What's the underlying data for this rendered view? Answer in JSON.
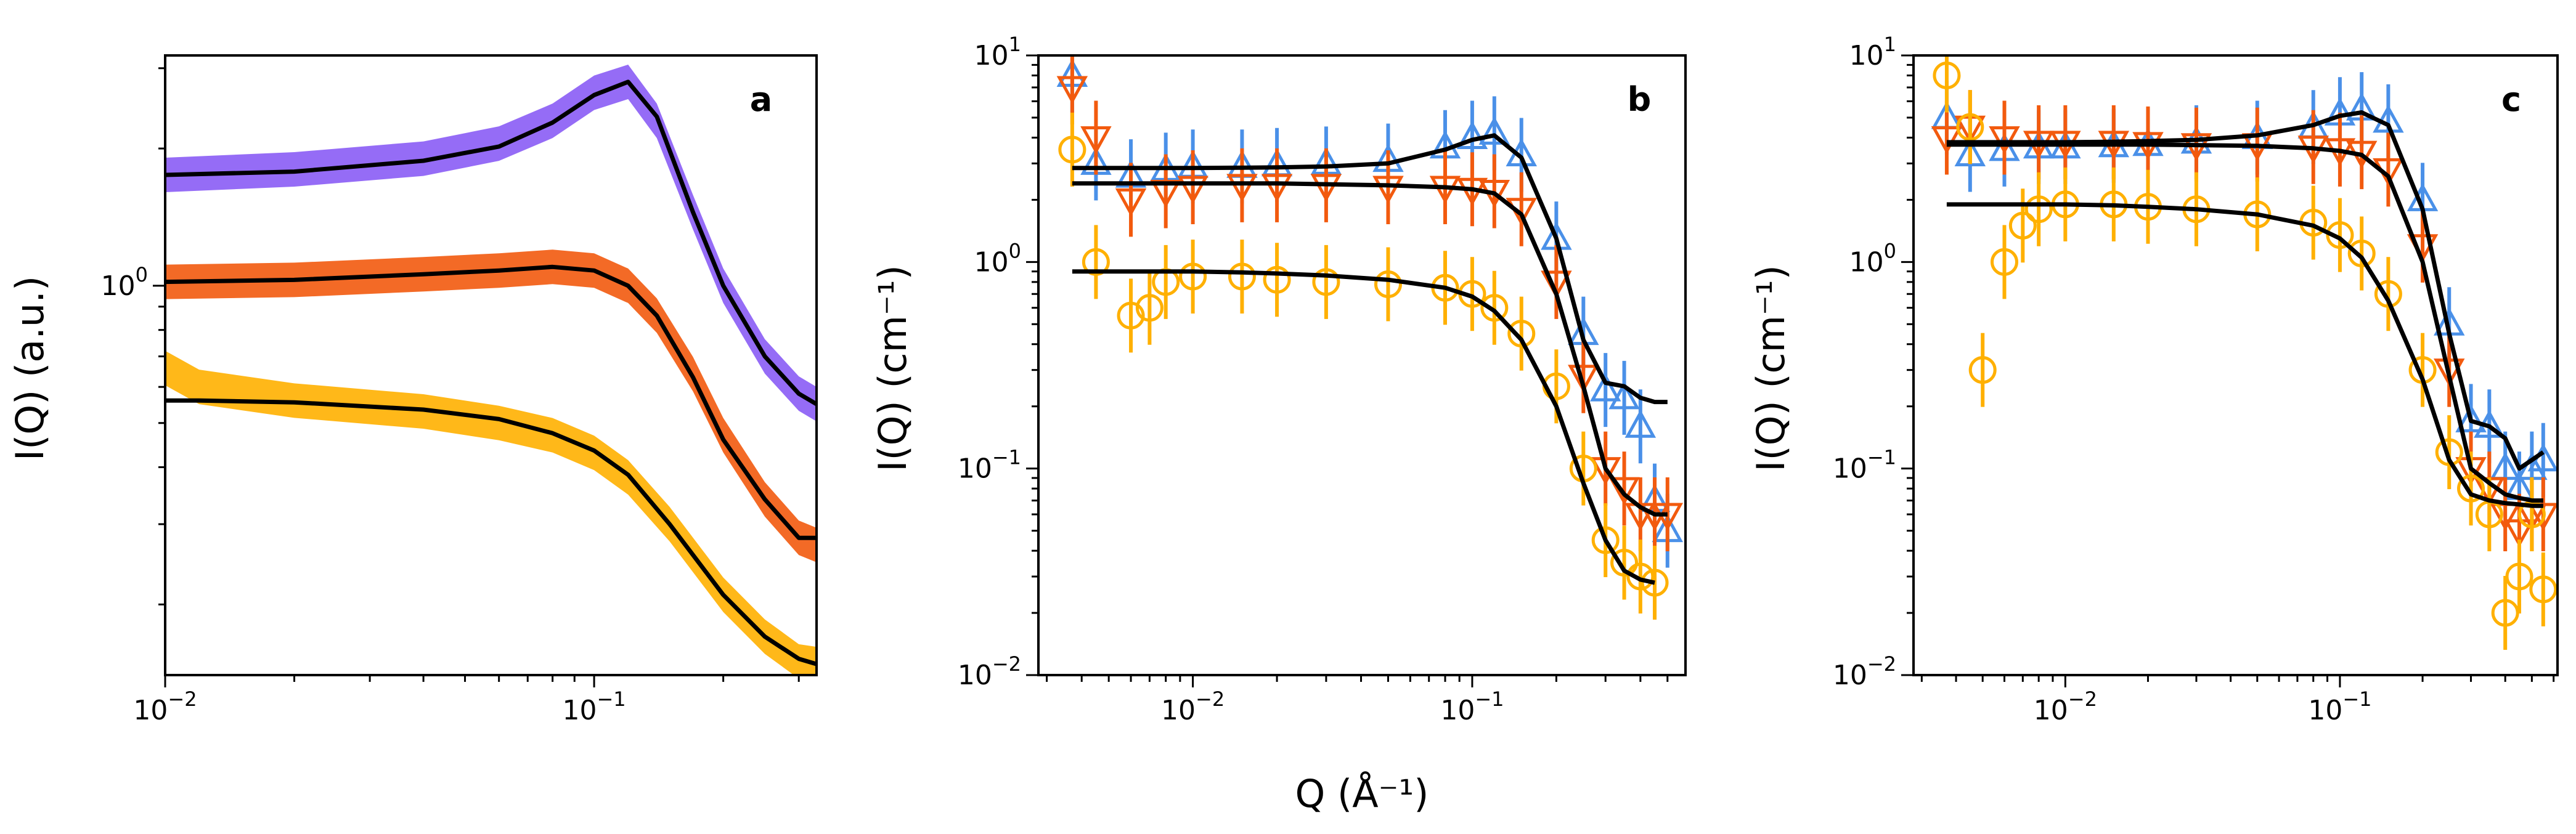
{
  "figure": {
    "shared_xlabel": "Q (Å⁻¹)",
    "colors": {
      "purple": "#8A5CF5",
      "orange": "#F25A0E",
      "yellow": "#FFB000",
      "blue": "#4A90E8",
      "fit": "#000000"
    }
  },
  "chart_data": [
    {
      "type": "scatter",
      "panel": "a",
      "title": "",
      "xlabel": "",
      "ylabel": "I(Q) (a.u.)",
      "xscale": "log",
      "yscale": "log",
      "xlim": [
        0.01,
        0.33
      ],
      "ylim": [
        0.14,
        3.2
      ],
      "x_tick_labels": [
        {
          "base": "10",
          "exp": "−2"
        },
        {
          "base": "10",
          "exp": "−1"
        }
      ],
      "y_tick_labels": [
        {
          "base": "10",
          "exp": "0"
        }
      ],
      "series": [
        {
          "name": "purple",
          "color": "#8A5CF5",
          "marker": "band",
          "x": [
            0.01,
            0.02,
            0.04,
            0.06,
            0.08,
            0.1,
            0.12,
            0.14,
            0.17,
            0.2,
            0.25,
            0.3,
            0.33
          ],
          "y": [
            1.75,
            1.8,
            1.9,
            2.05,
            2.3,
            2.65,
            2.8,
            2.3,
            1.45,
            1.0,
            0.7,
            0.58,
            0.55
          ],
          "fit": [
            1.75,
            1.78,
            1.88,
            2.02,
            2.28,
            2.62,
            2.8,
            2.35,
            1.45,
            1.0,
            0.7,
            0.58,
            0.55
          ]
        },
        {
          "name": "orange",
          "color": "#F25A0E",
          "marker": "band",
          "x": [
            0.01,
            0.02,
            0.04,
            0.06,
            0.08,
            0.1,
            0.12,
            0.14,
            0.17,
            0.2,
            0.25,
            0.3,
            0.33
          ],
          "y": [
            1.02,
            1.03,
            1.06,
            1.08,
            1.1,
            1.08,
            1.0,
            0.86,
            0.64,
            0.47,
            0.34,
            0.28,
            0.27
          ],
          "fit": [
            1.02,
            1.03,
            1.06,
            1.08,
            1.1,
            1.08,
            1.0,
            0.86,
            0.63,
            0.46,
            0.34,
            0.28,
            0.28
          ]
        },
        {
          "name": "yellow",
          "color": "#FFB000",
          "marker": "band",
          "x": [
            0.01,
            0.012,
            0.02,
            0.04,
            0.06,
            0.08,
            0.1,
            0.12,
            0.15,
            0.2,
            0.25,
            0.3,
            0.33
          ],
          "y": [
            0.66,
            0.6,
            0.56,
            0.53,
            0.5,
            0.47,
            0.43,
            0.38,
            0.3,
            0.21,
            0.17,
            0.15,
            0.148
          ],
          "fit": [
            0.56,
            0.56,
            0.555,
            0.535,
            0.51,
            0.475,
            0.435,
            0.385,
            0.3,
            0.21,
            0.17,
            0.152,
            0.148
          ]
        }
      ]
    },
    {
      "type": "scatter",
      "panel": "b",
      "title": "",
      "xlabel": "Q (Å⁻¹)",
      "ylabel": "I(Q) (cm⁻¹)",
      "xscale": "log",
      "yscale": "log",
      "xlim": [
        0.0028,
        0.58
      ],
      "ylim": [
        0.01,
        10
      ],
      "x_tick_labels": [
        {
          "base": "10",
          "exp": "−2"
        },
        {
          "base": "10",
          "exp": "−1"
        }
      ],
      "y_tick_labels": [
        {
          "base": "10",
          "exp": "−2"
        },
        {
          "base": "10",
          "exp": "−1"
        },
        {
          "base": "10",
          "exp": "0"
        },
        {
          "base": "10",
          "exp": "1"
        }
      ],
      "series": [
        {
          "name": "blue",
          "color": "#4A90E8",
          "marker": "triangle-up",
          "x": [
            0.0037,
            0.0045,
            0.006,
            0.008,
            0.01,
            0.015,
            0.02,
            0.03,
            0.05,
            0.08,
            0.1,
            0.12,
            0.15,
            0.2,
            0.25,
            0.3,
            0.35,
            0.4,
            0.45,
            0.5
          ],
          "y": [
            8.0,
            3.0,
            2.6,
            2.8,
            2.9,
            2.9,
            2.95,
            3.0,
            3.1,
            3.6,
            4.0,
            4.2,
            3.3,
            1.3,
            0.45,
            0.24,
            0.22,
            0.16,
            0.07,
            0.05
          ],
          "fit": [
            2.85,
            2.85,
            2.85,
            2.85,
            2.85,
            2.86,
            2.87,
            2.9,
            3.0,
            3.5,
            3.9,
            4.1,
            3.2,
            1.3,
            0.42,
            0.26,
            0.25,
            0.22,
            0.21,
            0.21
          ]
        },
        {
          "name": "orange",
          "color": "#F25A0E",
          "marker": "triangle-down",
          "x": [
            0.0037,
            0.0045,
            0.006,
            0.008,
            0.01,
            0.015,
            0.02,
            0.03,
            0.05,
            0.08,
            0.1,
            0.12,
            0.15,
            0.2,
            0.25,
            0.3,
            0.35,
            0.4,
            0.45,
            0.5
          ],
          "y": [
            7.0,
            4.0,
            2.0,
            2.2,
            2.3,
            2.35,
            2.35,
            2.35,
            2.3,
            2.3,
            2.25,
            2.2,
            1.8,
            0.8,
            0.28,
            0.1,
            0.08,
            0.06,
            0.06,
            0.06
          ],
          "fit": [
            2.4,
            2.4,
            2.4,
            2.4,
            2.4,
            2.4,
            2.4,
            2.38,
            2.35,
            2.3,
            2.25,
            2.15,
            1.7,
            0.7,
            0.25,
            0.1,
            0.075,
            0.065,
            0.06,
            0.06
          ]
        },
        {
          "name": "yellow",
          "color": "#FFB000",
          "marker": "circle",
          "x": [
            0.0037,
            0.0045,
            0.006,
            0.007,
            0.008,
            0.01,
            0.015,
            0.02,
            0.03,
            0.05,
            0.08,
            0.1,
            0.12,
            0.15,
            0.2,
            0.25,
            0.3,
            0.35,
            0.4,
            0.45
          ],
          "y": [
            3.5,
            1.0,
            0.55,
            0.6,
            0.8,
            0.85,
            0.85,
            0.82,
            0.8,
            0.78,
            0.75,
            0.7,
            0.6,
            0.45,
            0.25,
            0.1,
            0.045,
            0.035,
            0.03,
            0.028
          ],
          "fit": [
            0.9,
            0.9,
            0.9,
            0.9,
            0.9,
            0.9,
            0.89,
            0.88,
            0.86,
            0.82,
            0.75,
            0.68,
            0.58,
            0.42,
            0.2,
            0.085,
            0.045,
            0.032,
            0.029,
            0.028
          ]
        }
      ]
    },
    {
      "type": "scatter",
      "panel": "c",
      "title": "",
      "xlabel": "",
      "ylabel": "I(Q) (cm⁻¹)",
      "xscale": "log",
      "yscale": "log",
      "xlim": [
        0.0028,
        0.62
      ],
      "ylim": [
        0.01,
        10
      ],
      "x_tick_labels": [
        {
          "base": "10",
          "exp": "−2"
        },
        {
          "base": "10",
          "exp": "−1"
        }
      ],
      "y_tick_labels": [
        {
          "base": "10",
          "exp": "−2"
        },
        {
          "base": "10",
          "exp": "−1"
        },
        {
          "base": "10",
          "exp": "0"
        },
        {
          "base": "10",
          "exp": "1"
        }
      ],
      "series": [
        {
          "name": "blue",
          "color": "#4A90E8",
          "marker": "triangle-up",
          "x": [
            0.0037,
            0.0045,
            0.006,
            0.008,
            0.01,
            0.015,
            0.02,
            0.03,
            0.05,
            0.08,
            0.1,
            0.12,
            0.15,
            0.2,
            0.25,
            0.3,
            0.35,
            0.4,
            0.45,
            0.5,
            0.55
          ],
          "y": [
            5.0,
            3.3,
            3.5,
            3.6,
            3.6,
            3.65,
            3.7,
            3.8,
            4.0,
            4.5,
            5.2,
            5.5,
            4.8,
            2.0,
            0.5,
            0.17,
            0.16,
            0.1,
            0.08,
            0.1,
            0.11
          ],
          "fit": [
            3.8,
            3.8,
            3.8,
            3.8,
            3.8,
            3.82,
            3.85,
            3.9,
            4.1,
            4.6,
            5.1,
            5.3,
            4.6,
            1.8,
            0.45,
            0.17,
            0.16,
            0.14,
            0.1,
            0.11,
            0.12
          ]
        },
        {
          "name": "orange",
          "color": "#F25A0E",
          "marker": "triangle-down",
          "x": [
            0.0037,
            0.0045,
            0.006,
            0.008,
            0.01,
            0.015,
            0.02,
            0.03,
            0.05,
            0.08,
            0.1,
            0.12,
            0.15,
            0.2,
            0.25,
            0.3,
            0.35,
            0.4,
            0.45,
            0.5,
            0.55
          ],
          "y": [
            4.0,
            4.5,
            4.0,
            3.8,
            3.8,
            3.8,
            3.75,
            3.7,
            3.7,
            3.6,
            3.5,
            3.4,
            2.8,
            1.2,
            0.3,
            0.1,
            0.08,
            0.06,
            0.05,
            0.06,
            0.06
          ],
          "fit": [
            3.7,
            3.7,
            3.7,
            3.7,
            3.7,
            3.7,
            3.7,
            3.68,
            3.65,
            3.55,
            3.45,
            3.3,
            2.6,
            1.0,
            0.28,
            0.1,
            0.085,
            0.075,
            0.072,
            0.07,
            0.07
          ]
        },
        {
          "name": "yellow",
          "color": "#FFB000",
          "marker": "circle",
          "x": [
            0.0037,
            0.0045,
            0.005,
            0.006,
            0.007,
            0.008,
            0.01,
            0.015,
            0.02,
            0.03,
            0.05,
            0.08,
            0.1,
            0.12,
            0.15,
            0.2,
            0.25,
            0.3,
            0.35,
            0.4,
            0.45,
            0.5,
            0.55
          ],
          "y": [
            8.0,
            4.5,
            0.3,
            1.0,
            1.5,
            1.8,
            1.9,
            1.9,
            1.85,
            1.8,
            1.7,
            1.55,
            1.35,
            1.1,
            0.7,
            0.3,
            0.12,
            0.08,
            0.06,
            0.02,
            0.03,
            0.06,
            0.026
          ],
          "fit": [
            1.9,
            1.9,
            1.9,
            1.9,
            1.9,
            1.9,
            1.9,
            1.88,
            1.85,
            1.8,
            1.7,
            1.5,
            1.3,
            1.05,
            0.65,
            0.27,
            0.11,
            0.075,
            0.07,
            0.068,
            0.067,
            0.066,
            0.066
          ]
        }
      ]
    }
  ]
}
